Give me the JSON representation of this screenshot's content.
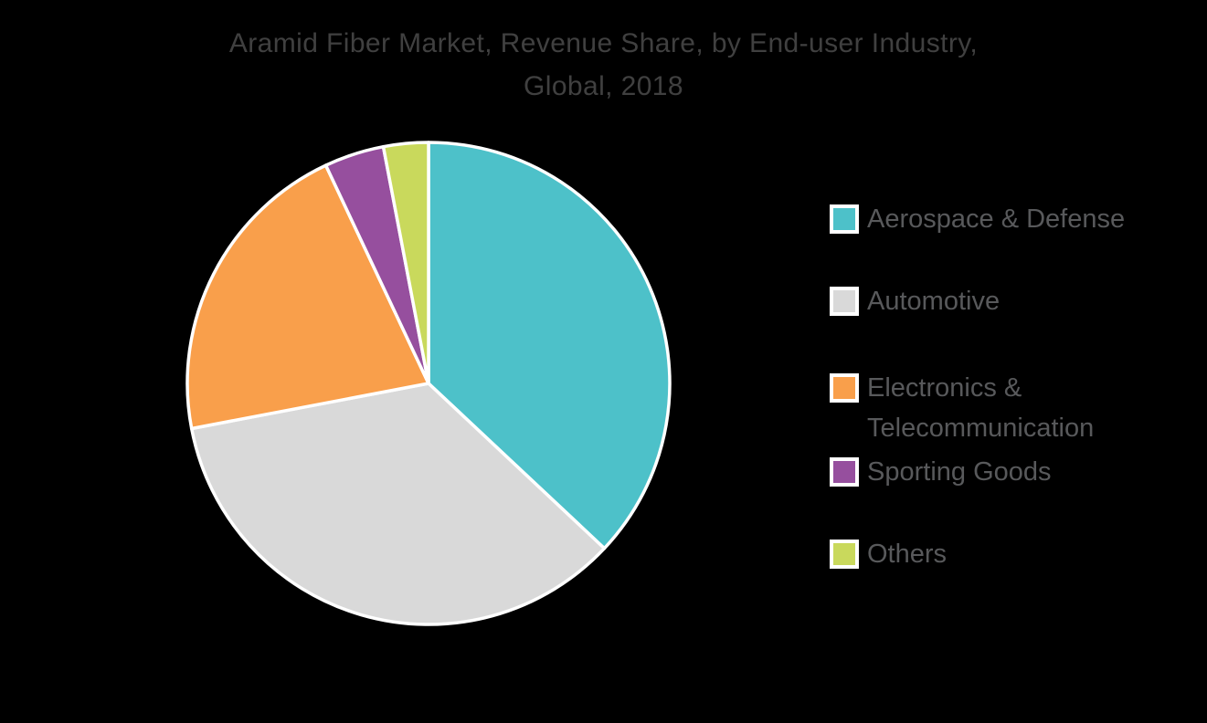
{
  "background_color": "#000000",
  "title": {
    "line1": "Aramid Fiber Market, Revenue Share, by End-user Industry,",
    "line2": "Global, 2018",
    "color": "#404040"
  },
  "chart_data": {
    "type": "pie",
    "title": "Aramid Fiber Market, Revenue Share, by End-user Industry, Global, 2018",
    "value_unit": "revenue share %, estimated from slice arc angles (no data labels shown)",
    "start_angle_deg": 0,
    "direction": "clockwise",
    "slice_border_color": "#FFFFFF",
    "legend_position": "right",
    "segments": [
      {
        "label": "Aerospace & Defense",
        "value": 37,
        "arc_deg": 133,
        "color": "#4DC1C9"
      },
      {
        "label": "Automotive",
        "value": 35,
        "arc_deg": 125,
        "color": "#D9D9D9"
      },
      {
        "label": "Electronics & Telecommunication",
        "value": 21,
        "arc_deg": 76,
        "color": "#F99F4B"
      },
      {
        "label": "Sporting Goods",
        "value": 4,
        "arc_deg": 15,
        "color": "#964F9E"
      },
      {
        "label": "Others",
        "value": 3,
        "arc_deg": 11,
        "color": "#C9D95C"
      }
    ],
    "legend_text_color": "#58595B"
  }
}
